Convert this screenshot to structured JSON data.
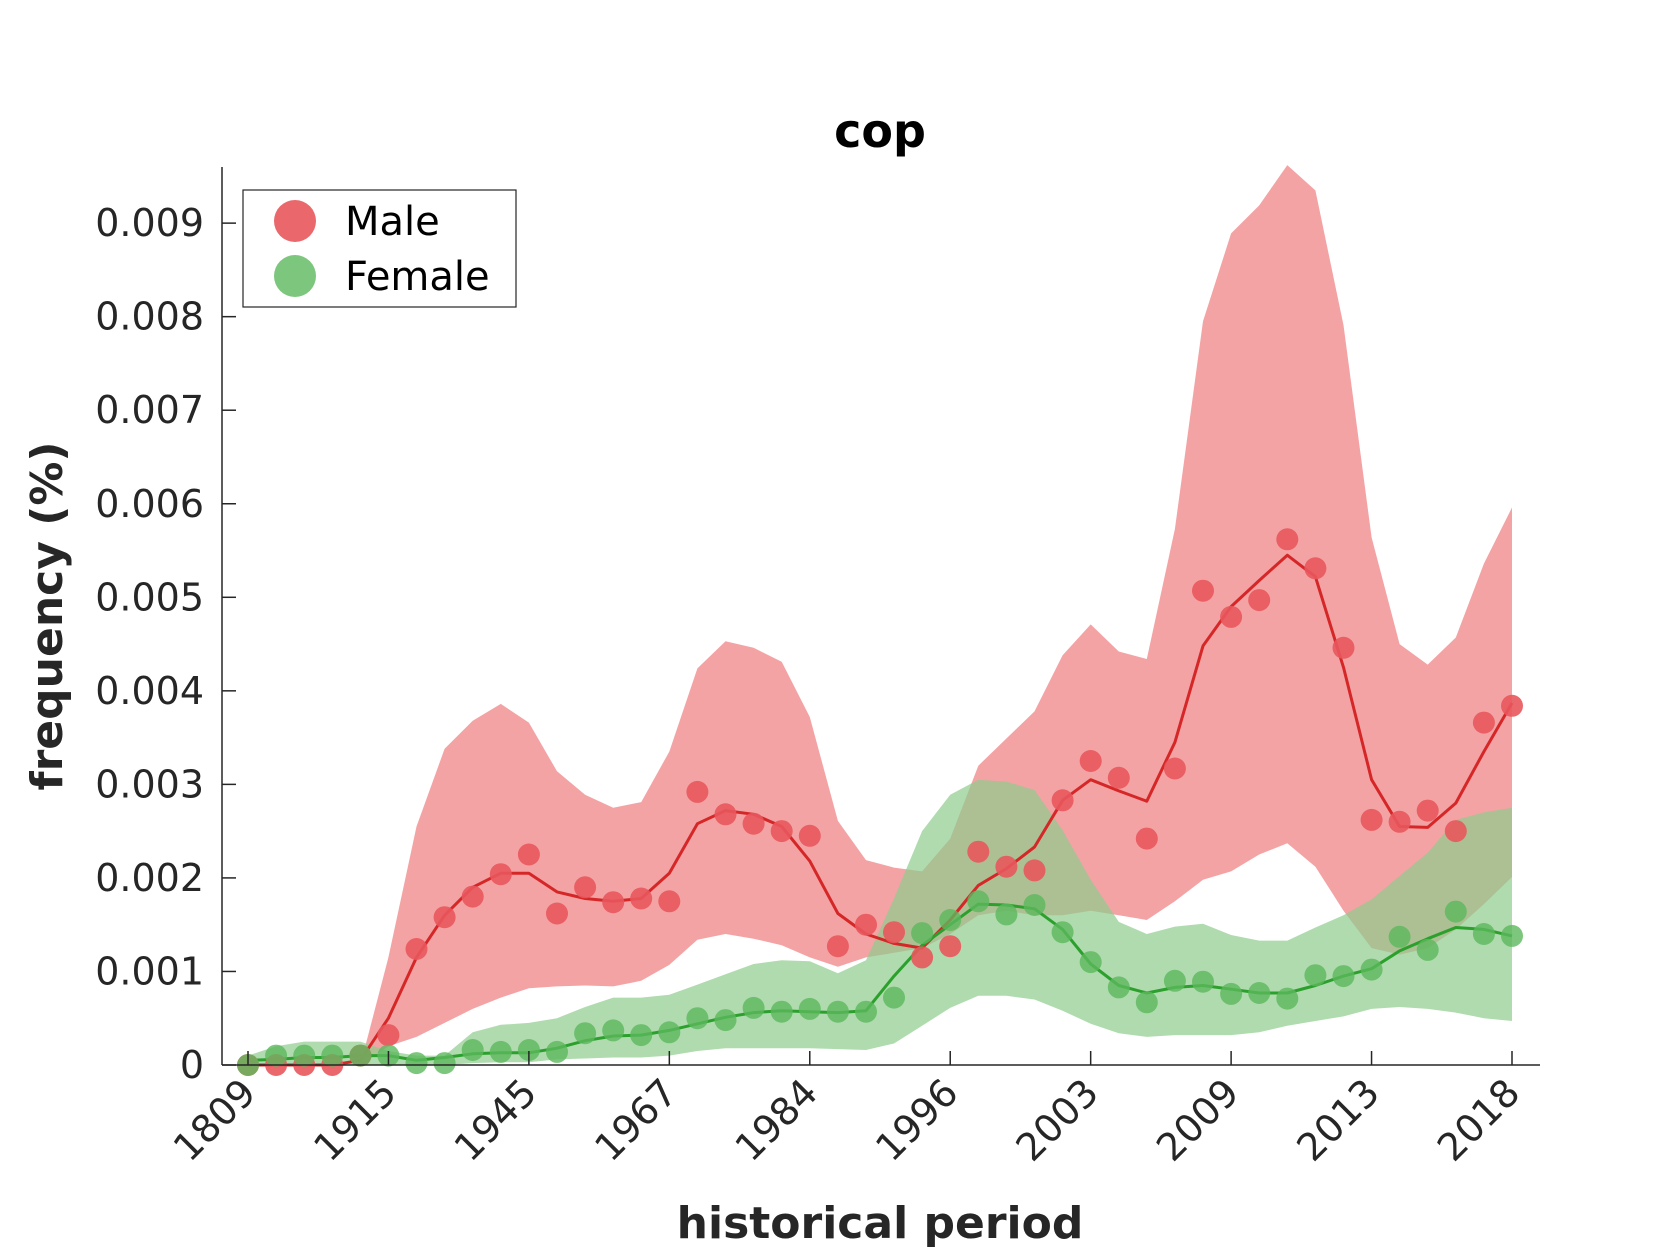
{
  "chart_data": {
    "type": "line",
    "title": "cop",
    "xlabel": "historical period",
    "ylabel": "frequency (%)",
    "x_tick_labels": [
      "1809",
      "1915",
      "1945",
      "1967",
      "1984",
      "1996",
      "2003",
      "2009",
      "2013",
      "2018"
    ],
    "y_tick_labels": [
      "0",
      "0.001",
      "0.002",
      "0.003",
      "0.004",
      "0.005",
      "0.006",
      "0.007",
      "0.008",
      "0.009"
    ],
    "y_ticks": [
      0,
      0.001,
      0.002,
      0.003,
      0.004,
      0.005,
      0.006,
      0.007,
      0.008,
      0.009
    ],
    "ylim": [
      0,
      0.0096
    ],
    "legend_position": "top-left",
    "grid": false,
    "series": [
      {
        "name": "Male",
        "color": "#d62728",
        "point_color": "#e8585c",
        "band_color": "#f4a3a5",
        "points": [
          0,
          0,
          0,
          0,
          0.0001,
          0.00032,
          0.00124,
          0.00158,
          0.0018,
          0.00204,
          0.00225,
          0.00162,
          0.0019,
          0.00174,
          0.00178,
          0.00175,
          0.00292,
          0.00268,
          0.00258,
          0.0025,
          0.00245,
          0.00127,
          0.0015,
          0.00142,
          0.00115,
          0.00127,
          0.00228,
          0.00212,
          0.00208,
          0.00283,
          0.00325,
          0.00307,
          0.00242,
          0.00317,
          0.00507,
          0.00479,
          0.00497,
          0.00562,
          0.00531,
          0.00446,
          0.00262,
          0.0026,
          0.00272,
          0.0025,
          0.00366,
          0.00384
        ],
        "smoothed": [
          0,
          0,
          0,
          0,
          5e-05,
          0.0005,
          0.00115,
          0.0016,
          0.0019,
          0.00205,
          0.00205,
          0.00185,
          0.00178,
          0.00175,
          0.00178,
          0.00205,
          0.00258,
          0.00272,
          0.00268,
          0.00255,
          0.00218,
          0.00162,
          0.0014,
          0.0013,
          0.00125,
          0.00155,
          0.00192,
          0.0021,
          0.00233,
          0.00283,
          0.00305,
          0.00293,
          0.00282,
          0.00345,
          0.00448,
          0.0049,
          0.00518,
          0.00545,
          0.00522,
          0.00425,
          0.00305,
          0.00255,
          0.00254,
          0.0028,
          0.00335,
          0.00387
        ],
        "band_upper": [
          0,
          0,
          0,
          0,
          0,
          0.00115,
          0.00255,
          0.00338,
          0.00368,
          0.00386,
          0.00366,
          0.00314,
          0.00289,
          0.00275,
          0.00281,
          0.00335,
          0.00424,
          0.00453,
          0.00446,
          0.00431,
          0.00372,
          0.00261,
          0.00219,
          0.00211,
          0.00207,
          0.00242,
          0.0032,
          0.00349,
          0.00378,
          0.00438,
          0.00471,
          0.00442,
          0.00434,
          0.00573,
          0.00795,
          0.00889,
          0.00919,
          0.00962,
          0.00935,
          0.00791,
          0.00564,
          0.0045,
          0.00428,
          0.00457,
          0.00536,
          0.00596
        ],
        "band_lower": [
          0,
          0,
          0,
          0,
          0,
          0.0002,
          0.0003,
          0.00045,
          0.0006,
          0.00072,
          0.00082,
          0.00084,
          0.00085,
          0.00084,
          0.0009,
          0.00107,
          0.00134,
          0.0014,
          0.00135,
          0.00128,
          0.00115,
          0.00105,
          0.00115,
          0.0012,
          0.00125,
          0.0014,
          0.0016,
          0.00165,
          0.0016,
          0.0016,
          0.00165,
          0.0016,
          0.00155,
          0.00175,
          0.00198,
          0.00207,
          0.00225,
          0.00237,
          0.00212,
          0.00165,
          0.00125,
          0.00118,
          0.00125,
          0.00145,
          0.00172,
          0.00201
        ]
      },
      {
        "name": "Female",
        "color": "#2ca02c",
        "point_color": "#5cb85c",
        "band_color": "#8dcc8d",
        "points": [
          0,
          0.0001,
          0.0001,
          0.0001,
          0.0001,
          0.0001,
          2e-05,
          2e-05,
          0.00016,
          0.00014,
          0.00016,
          0.00014,
          0.00034,
          0.00037,
          0.00032,
          0.00035,
          0.0005,
          0.00048,
          0.00061,
          0.00057,
          0.0006,
          0.00057,
          0.00057,
          0.00072,
          0.00141,
          0.00155,
          0.00175,
          0.00161,
          0.00171,
          0.00142,
          0.0011,
          0.00083,
          0.00067,
          0.0009,
          0.00089,
          0.00076,
          0.00077,
          0.00071,
          0.00096,
          0.00095,
          0.00102,
          0.00137,
          0.00123,
          0.00164,
          0.0014,
          0.00138
        ],
        "smoothed": [
          5e-05,
          6e-05,
          8e-05,
          8e-05,
          0.0001,
          0.0001,
          5e-05,
          8e-05,
          0.00012,
          0.00013,
          0.00013,
          0.00018,
          0.00026,
          0.00031,
          0.00032,
          0.00037,
          0.00044,
          0.00051,
          0.00056,
          0.00058,
          0.00057,
          0.00056,
          0.00058,
          0.00095,
          0.00128,
          0.0015,
          0.00172,
          0.00171,
          0.00167,
          0.00145,
          0.00108,
          0.00085,
          0.00077,
          0.00083,
          0.00085,
          0.00081,
          0.00077,
          0.00077,
          0.00085,
          0.00095,
          0.00103,
          0.00122,
          0.00135,
          0.00147,
          0.00145,
          0.00138
        ],
        "band_upper": [
          0.0001,
          0.0002,
          0.00025,
          0.00025,
          0.00025,
          0.00015,
          0.0001,
          0.0001,
          0.00035,
          0.00043,
          0.00045,
          0.0005,
          0.00062,
          0.00072,
          0.00072,
          0.00075,
          0.00086,
          0.00097,
          0.00108,
          0.00112,
          0.00111,
          0.00098,
          0.00112,
          0.00178,
          0.0025,
          0.00289,
          0.00305,
          0.00303,
          0.00294,
          0.00251,
          0.00198,
          0.00153,
          0.0014,
          0.00148,
          0.00151,
          0.00139,
          0.00133,
          0.00133,
          0.00147,
          0.0016,
          0.00177,
          0.00202,
          0.00227,
          0.00262,
          0.0027,
          0.00275
        ],
        "band_lower": [
          0,
          0,
          0,
          0,
          0,
          0,
          0,
          0,
          2e-05,
          3e-05,
          3e-05,
          6e-05,
          7e-05,
          8e-05,
          8e-05,
          0.0001,
          0.00015,
          0.00018,
          0.00018,
          0.00018,
          0.00018,
          0.00017,
          0.00016,
          0.00023,
          0.00042,
          0.00061,
          0.00074,
          0.00074,
          0.0007,
          0.00058,
          0.00044,
          0.00034,
          0.0003,
          0.00032,
          0.00032,
          0.00032,
          0.00035,
          0.00042,
          0.00047,
          0.00052,
          0.0006,
          0.00062,
          0.0006,
          0.00056,
          0.0005,
          0.00047
        ]
      }
    ]
  }
}
